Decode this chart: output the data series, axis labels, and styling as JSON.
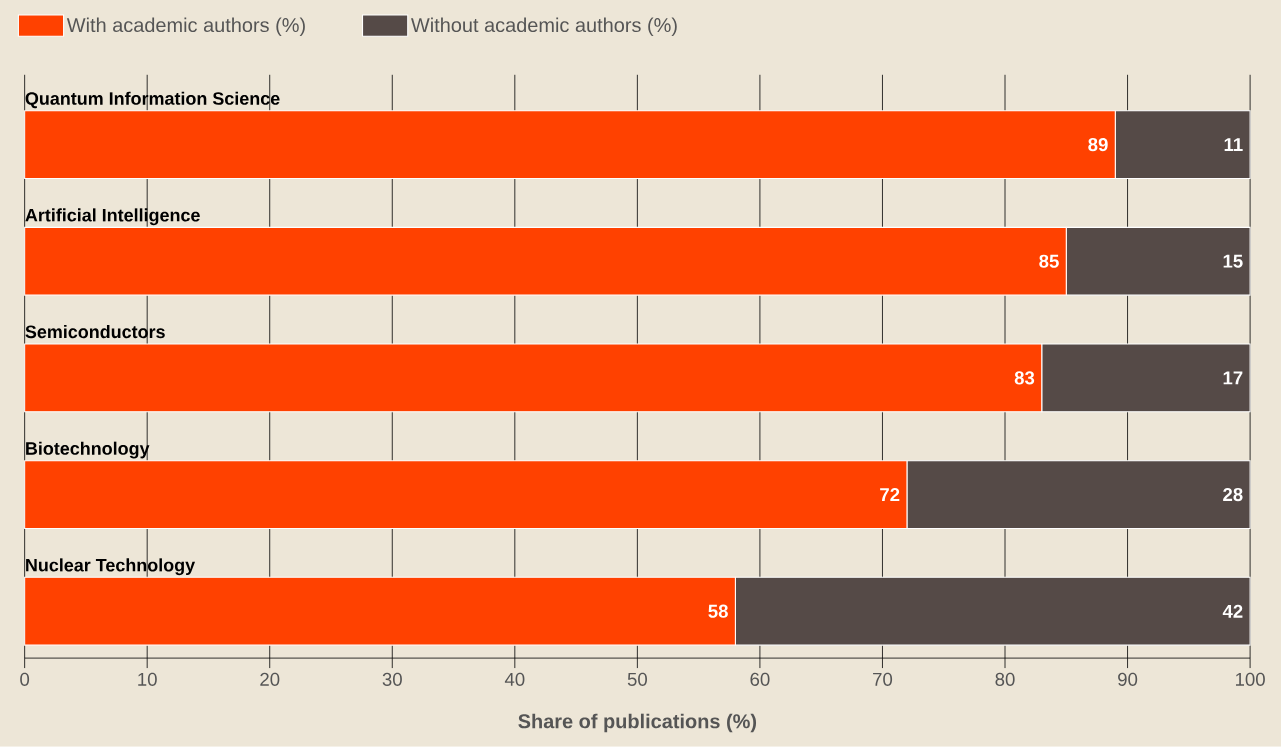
{
  "chart_data": {
    "type": "bar",
    "orientation": "horizontal",
    "stacked": true,
    "categories": [
      "Quantum Information Science",
      "Artificial Intelligence",
      "Semiconductors",
      "Biotechnology",
      "Nuclear Technology"
    ],
    "series": [
      {
        "name": "With academic authors (%)",
        "color": "#ff4100",
        "values": [
          89,
          85,
          83,
          72,
          58
        ]
      },
      {
        "name": "Without academic authors (%)",
        "color": "#554a47",
        "values": [
          11,
          15,
          17,
          28,
          42
        ]
      }
    ],
    "xlabel": "Share of publications (%)",
    "xlim": [
      0,
      100
    ],
    "xticks": [
      0,
      10,
      20,
      30,
      40,
      50,
      60,
      70,
      80,
      90,
      100
    ],
    "grid": "x",
    "legend": "top left",
    "data_labels": true
  }
}
